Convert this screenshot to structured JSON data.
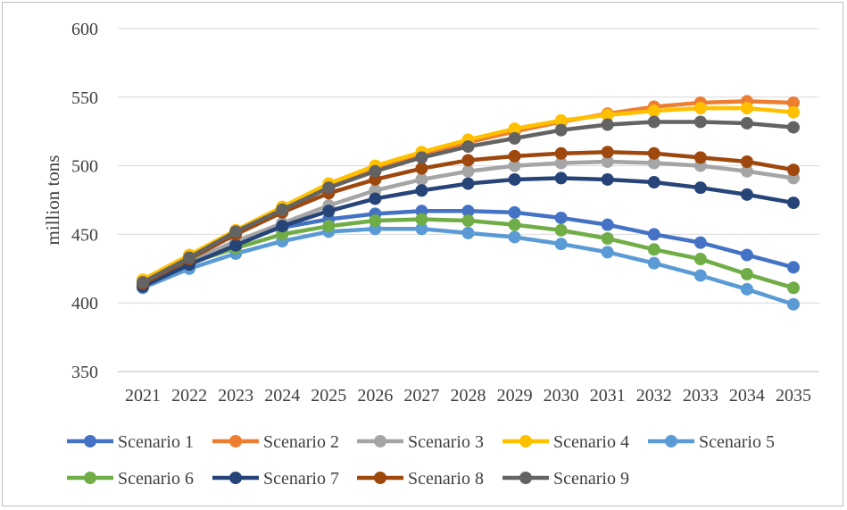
{
  "chart_data": {
    "type": "line",
    "title": "",
    "xlabel": "",
    "ylabel": "million tons",
    "ylim": [
      350,
      600
    ],
    "yticks": [
      350,
      400,
      450,
      500,
      550,
      600
    ],
    "grid": "horizontal",
    "legend_position": "bottom",
    "x": [
      "2021",
      "2022",
      "2023",
      "2024",
      "2025",
      "2026",
      "2027",
      "2028",
      "2029",
      "2030",
      "2031",
      "2032",
      "2033",
      "2034",
      "2035"
    ],
    "series": [
      {
        "name": "Scenario 1",
        "color": "#4472C4",
        "values": [
          413,
          430,
          445,
          455,
          461,
          465,
          467,
          467,
          466,
          462,
          457,
          450,
          444,
          435,
          426
        ]
      },
      {
        "name": "Scenario 2",
        "color": "#ED7D31",
        "values": [
          416,
          434,
          452,
          468,
          484,
          497,
          508,
          517,
          525,
          532,
          538,
          543,
          546,
          547,
          546
        ]
      },
      {
        "name": "Scenario 3",
        "color": "#A5A5A5",
        "values": [
          414,
          430,
          445,
          458,
          471,
          482,
          490,
          496,
          500,
          502,
          503,
          502,
          500,
          496,
          491
        ]
      },
      {
        "name": "Scenario 4",
        "color": "#FFC000",
        "values": [
          417,
          435,
          453,
          470,
          487,
          500,
          510,
          519,
          527,
          533,
          537,
          540,
          542,
          542,
          539
        ]
      },
      {
        "name": "Scenario 5",
        "color": "#5B9BD5",
        "values": [
          411,
          425,
          436,
          445,
          452,
          454,
          454,
          451,
          448,
          443,
          437,
          429,
          420,
          410,
          399
        ]
      },
      {
        "name": "Scenario 6",
        "color": "#70AD47",
        "values": [
          413,
          429,
          440,
          450,
          456,
          460,
          461,
          460,
          457,
          453,
          447,
          439,
          432,
          421,
          411
        ]
      },
      {
        "name": "Scenario 7",
        "color": "#264478",
        "values": [
          412,
          428,
          442,
          456,
          467,
          476,
          482,
          487,
          490,
          491,
          490,
          488,
          484,
          479,
          473
        ]
      },
      {
        "name": "Scenario 8",
        "color": "#9E480E",
        "values": [
          414,
          432,
          450,
          466,
          480,
          490,
          498,
          504,
          507,
          509,
          510,
          509,
          506,
          503,
          497
        ]
      },
      {
        "name": "Scenario 9",
        "color": "#636363",
        "values": [
          415,
          433,
          452,
          468,
          484,
          496,
          506,
          514,
          520,
          526,
          530,
          532,
          532,
          531,
          528
        ]
      }
    ]
  }
}
